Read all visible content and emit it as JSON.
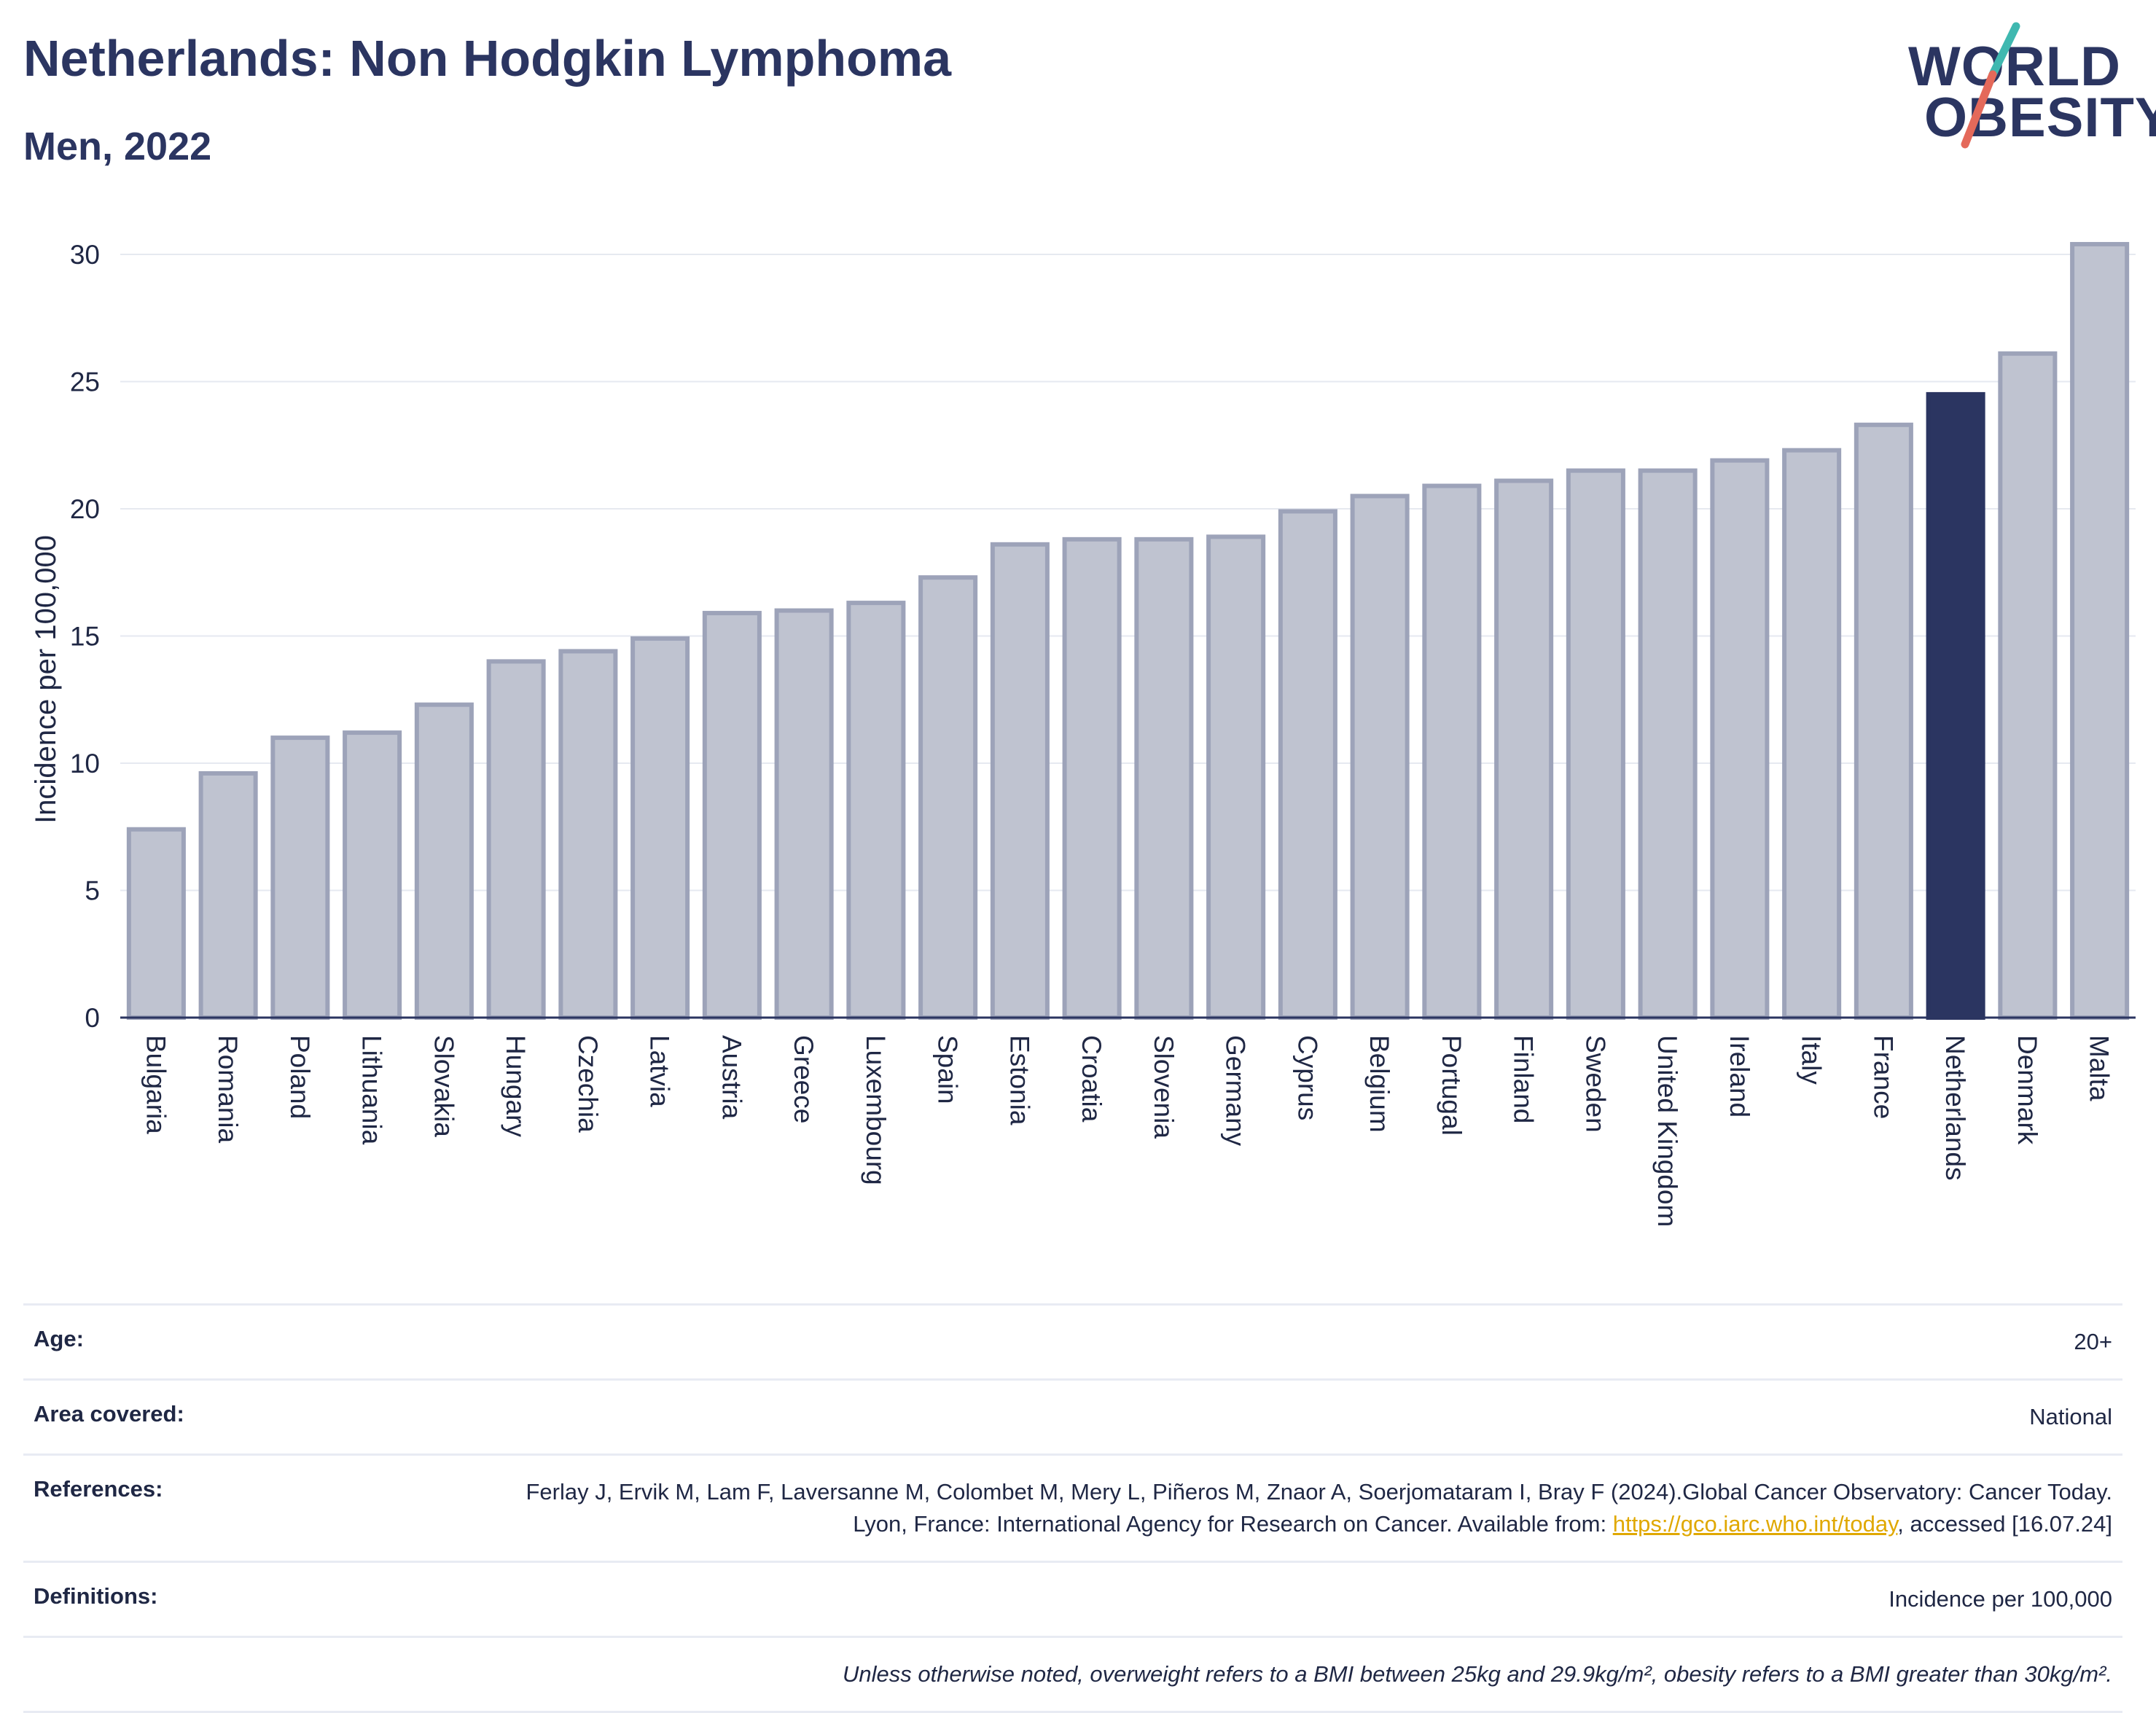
{
  "header": {
    "title": "Netherlands: Non Hodgkin Lymphoma",
    "subtitle": "Men, 2022"
  },
  "logo": {
    "line1": "WORLD",
    "line2": "OBESITY",
    "accent_teal": "#3fb8b0",
    "accent_red": "#e4695a"
  },
  "chart_data": {
    "type": "bar",
    "title": "",
    "xlabel": "",
    "ylabel": "Incidence per 100,000",
    "ylim": [
      0,
      30.6
    ],
    "yticks": [
      0,
      5,
      10,
      15,
      20,
      25,
      30
    ],
    "grid": true,
    "highlight": "Netherlands",
    "colors": {
      "bar": "#bfc3d0",
      "bar_edge": "#9da3b9",
      "highlight": "#2b3561"
    },
    "categories": [
      "Bulgaria",
      "Romania",
      "Poland",
      "Lithuania",
      "Slovakia",
      "Hungary",
      "Czechia",
      "Latvia",
      "Austria",
      "Greece",
      "Luxembourg",
      "Spain",
      "Estonia",
      "Croatia",
      "Slovenia",
      "Germany",
      "Cyprus",
      "Belgium",
      "Portugal",
      "Finland",
      "Sweden",
      "United Kingdom",
      "Ireland",
      "Italy",
      "France",
      "Netherlands",
      "Denmark",
      "Malta"
    ],
    "values": [
      7.4,
      9.6,
      11.0,
      11.2,
      12.3,
      14.0,
      14.4,
      14.9,
      15.9,
      16.0,
      16.3,
      17.3,
      18.6,
      18.8,
      18.8,
      18.9,
      19.9,
      20.5,
      20.9,
      21.1,
      21.5,
      21.5,
      21.9,
      22.3,
      23.3,
      24.5,
      26.1,
      30.4
    ]
  },
  "info": {
    "age": {
      "label": "Age:",
      "value": "20+"
    },
    "area": {
      "label": "Area covered:",
      "value": "National"
    },
    "references": {
      "label": "References:",
      "text_before": "Ferlay J, Ervik M, Lam F, Laversanne M, Colombet M, Mery L, Piñeros M, Znaor A, Soerjomataram I, Bray F (2024).Global Cancer Observatory: Cancer Today. Lyon, France: International Agency for Research on Cancer. Available from: ",
      "link": "https://gco.iarc.who.int/today",
      "text_after": ", accessed [16.07.24]"
    },
    "definitions": {
      "label": "Definitions:",
      "value": "Incidence per 100,000"
    },
    "note": "Unless otherwise noted, overweight refers to a BMI between 25kg and 29.9kg/m², obesity refers to a BMI greater than 30kg/m²."
  }
}
